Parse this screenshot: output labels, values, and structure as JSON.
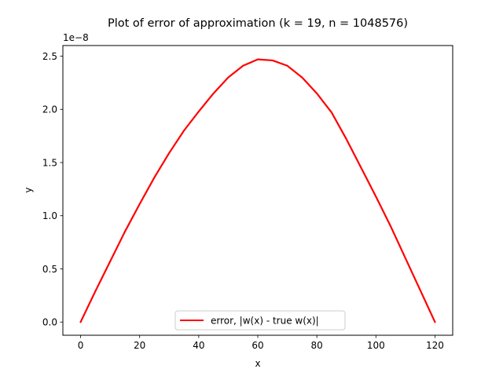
{
  "chart_data": {
    "type": "line",
    "title": "Plot of error of approximation (k = 19, n = 1048576)",
    "xlabel": "x",
    "ylabel": "y",
    "offset_text": "1e−8",
    "xlim": [
      -6,
      126
    ],
    "ylim": [
      -0.124,
      2.6
    ],
    "xticks": [
      0,
      20,
      40,
      60,
      80,
      100,
      120
    ],
    "xtick_labels": [
      "0",
      "20",
      "40",
      "60",
      "80",
      "100",
      "120"
    ],
    "yticks": [
      0.0,
      0.5,
      1.0,
      1.5,
      2.0,
      2.5
    ],
    "ytick_labels": [
      "0.0",
      "0.5",
      "1.0",
      "1.5",
      "2.0",
      "2.5"
    ],
    "grid": false,
    "legend_location": "lower center",
    "series": [
      {
        "name": "error, |w(x) - true w(x)|",
        "color": "#ff0000",
        "x": [
          0,
          5,
          10,
          15,
          20,
          25,
          30,
          35,
          40,
          45,
          50,
          55,
          60,
          65,
          70,
          75,
          80,
          85,
          90,
          95,
          100,
          105,
          110,
          115,
          120
        ],
        "y": [
          0.0,
          0.29,
          0.57,
          0.85,
          1.11,
          1.36,
          1.59,
          1.8,
          1.98,
          2.15,
          2.3,
          2.41,
          2.47,
          2.46,
          2.41,
          2.3,
          2.15,
          1.97,
          1.72,
          1.45,
          1.18,
          0.9,
          0.6,
          0.3,
          0.0
        ]
      }
    ]
  }
}
